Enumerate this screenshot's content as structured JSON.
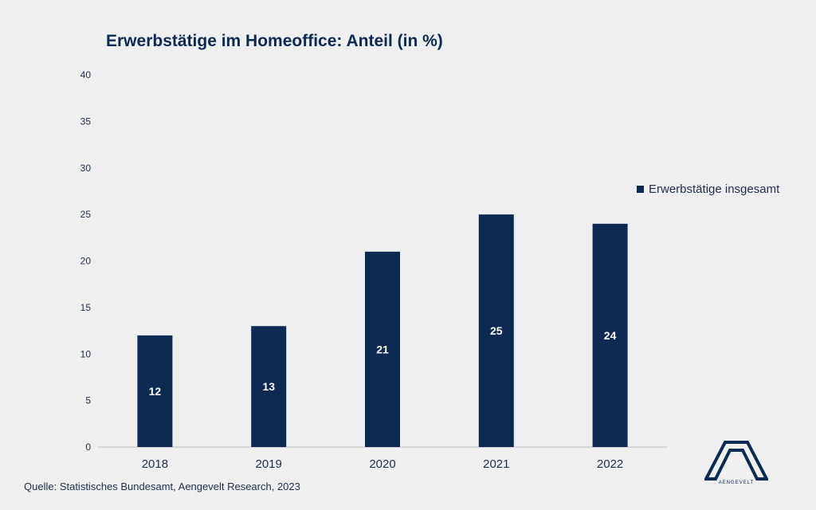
{
  "chart_data": {
    "type": "bar",
    "title": "Erwerbstätige im Homeoffice: Anteil (in %)",
    "categories": [
      "2018",
      "2019",
      "2020",
      "2021",
      "2022"
    ],
    "series": [
      {
        "name": "Erwerbstätige insgesamt",
        "values": [
          12,
          13,
          21,
          25,
          24
        ],
        "color": "#0c2a52"
      }
    ],
    "ylim": [
      0,
      40
    ],
    "yticks": [
      "0",
      "5",
      "10",
      "15",
      "20",
      "25",
      "30",
      "35",
      "40"
    ],
    "data_labels": [
      "12",
      "13",
      "21",
      "25",
      "24"
    ],
    "grid": false,
    "legend_position": "right"
  },
  "source": "Quelle: Statistisches Bundesamt, Aengevelt Research, 2023",
  "logo": {
    "text": "AENGEVELT"
  }
}
